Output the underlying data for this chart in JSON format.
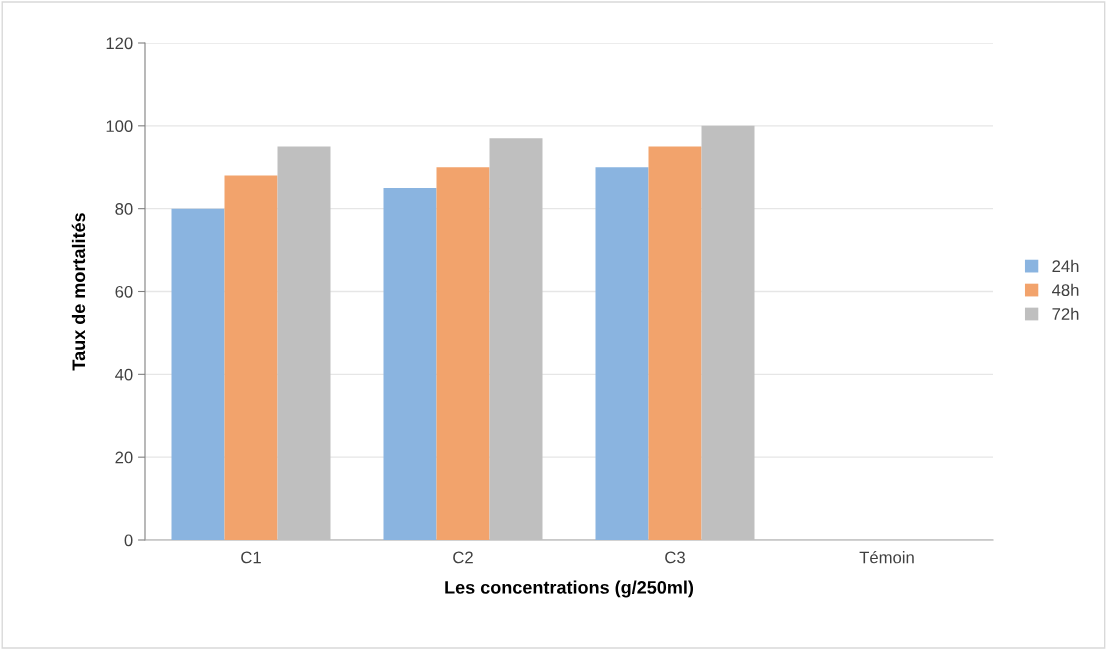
{
  "chart_data": {
    "type": "bar",
    "xlabel": "Les concentrations (g/250ml)",
    "ylabel": "Taux de mortalités",
    "categories": [
      "C1",
      "C2",
      "C3",
      "Témoin"
    ],
    "series": [
      {
        "name": "24h",
        "color": "#8ab4e0",
        "values": [
          80,
          85,
          90,
          0
        ]
      },
      {
        "name": "48h",
        "color": "#f2a36c",
        "values": [
          88,
          90,
          95,
          0
        ]
      },
      {
        "name": "72h",
        "color": "#bfbfbf",
        "values": [
          95,
          97,
          100,
          0
        ]
      }
    ],
    "ylim": [
      0,
      120
    ],
    "yticks": [
      0,
      20,
      40,
      60,
      80,
      100,
      120
    ],
    "grid": "y",
    "legend": "right"
  }
}
